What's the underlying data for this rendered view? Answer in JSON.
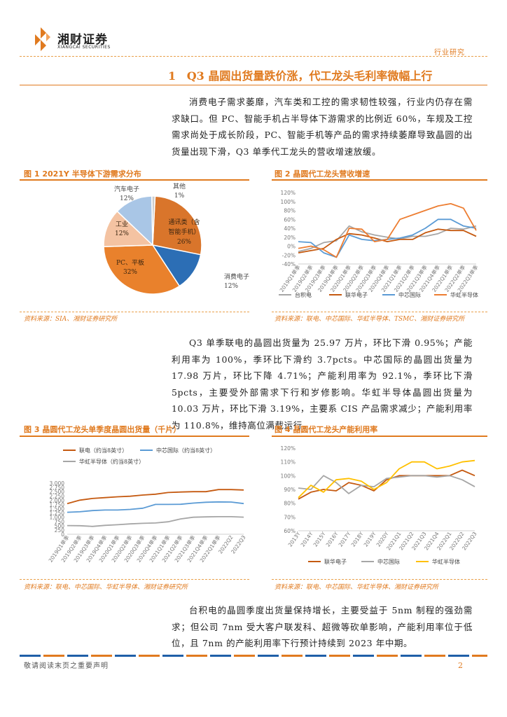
{
  "header": {
    "brand_cn": "湘财证券",
    "brand_en": "XIANGCAI SECURITIES",
    "category": "行业研究"
  },
  "section": {
    "number": "1",
    "title": "Q3 晶圆出货量跌价涨，代工龙头毛利率微幅上行"
  },
  "paragraphs": {
    "p1": "消费电子需求萎靡，汽车类和工控的需求韧性较强，行业内仍存在需求缺口。但 PC、智能手机占半导体下游需求的比例近 60%，车规及工控需求尚处于成长阶段，PC、智能手机等产品的需求持续萎靡导致晶圆的出货量出现下滑，Q3 单季代工龙头的营收增速放缓。",
    "p2": "Q3 单季联电的晶圆出货量为 25.97 万片，环比下滑 0.95%；产能利用率为 100%，季环比下滑约 3.7pcts。中芯国际的晶圆出货量为 17.98 万片，环比下降 4.71%；产能利用率为 92.1%，季环比下滑 5pcts，主要受外部需求下行和岁修影响。华虹半导体晶圆出货量为 10.03 万片，环比下滑 3.19%，主要系 CIS 产品需求减少；产能利用率为 110.8%，维持高位满载运行。",
    "p3": "台积电的晶圆季度出货量保持增长，主要受益于 5nm 制程的强劲需求；但公司 7nm 受大客户联发科、超微等砍单影响，产能利用率位于低位，且 7nm 的产能利用率下行预计持续到 2023 年中期。"
  },
  "figures": {
    "fig1": {
      "title": "图 1 2021Y 半导体下游需求分布",
      "source": "资料来源：SIA、湘财证券研究所"
    },
    "fig2": {
      "title": "图 2 晶圆代工龙头营收增速",
      "source": "资料来源：联电、中芯国际、华虹半导体、TSMC、湘财证券研究所"
    },
    "fig3": {
      "title": "图 3 晶圆代工龙头单季度晶圆出货量（千片）",
      "source": "资料来源：联电、中芯国际、华虹半导体、湘财证券研究所"
    },
    "fig4": {
      "title": "图 4 晶圆代工龙头产能利用率",
      "source": "资料来源：联电、中芯国际、华虹半导体、湘财证券研究所"
    }
  },
  "chart_data": [
    {
      "type": "pie",
      "slices": [
        {
          "label": "通讯类（含智能手机）",
          "line1": "通讯类（含",
          "line2": "智能手机）",
          "value": 26,
          "value_label": "26%",
          "color": "#d9752b"
        },
        {
          "label": "消费电子",
          "value": 12,
          "value_label": "12%",
          "color": "#2c6eb5"
        },
        {
          "label": "PC、平板",
          "value": 32,
          "value_label": "32%",
          "color": "#e9812c"
        },
        {
          "label": "工业",
          "value": 12,
          "value_label": "12%",
          "color": "#f4c3a2"
        },
        {
          "label": "汽车电子",
          "value": 12,
          "value_label": "12%",
          "color": "#a9c6e6"
        },
        {
          "label": "其他",
          "value": 1,
          "value_label": "1%",
          "color": "#cccccc"
        }
      ]
    },
    {
      "type": "line",
      "ylim": [
        -40,
        120
      ],
      "yticks": [
        "-40%",
        "-20%",
        "0%",
        "20%",
        "40%",
        "60%",
        "80%",
        "100%",
        "120%"
      ],
      "categories": [
        "2019Q1单季",
        "2019Q2单季",
        "2019Q3单季",
        "2019Q4单季",
        "2020Q1单季",
        "2020Q2单季",
        "2020Q3单季",
        "2020Q4单季",
        "2021Q1单季",
        "2021Q2单季",
        "2021Q3单季",
        "2021Q4单季",
        "2022Q1单季",
        "2022Q2单季",
        "2022Q3单季"
      ],
      "series": [
        {
          "name": "台积电",
          "color": "#a6a6a6",
          "values": [
            -12,
            -5,
            8,
            12,
            45,
            32,
            25,
            20,
            16,
            22,
            22,
            28,
            40,
            38,
            45
          ]
        },
        {
          "name": "联华电子",
          "color": "#c55a11",
          "values": [
            -15,
            -10,
            -5,
            15,
            28,
            25,
            18,
            10,
            15,
            15,
            30,
            38,
            35,
            35,
            22
          ]
        },
        {
          "name": "中芯国际",
          "color": "#5b9bd5",
          "values": [
            10,
            8,
            -15,
            -25,
            25,
            15,
            12,
            15,
            18,
            25,
            40,
            60,
            60,
            45,
            40
          ]
        },
        {
          "name": "华虹半导体",
          "color": "#ed7d31",
          "values": [
            -5,
            0,
            -8,
            -25,
            40,
            38,
            10,
            15,
            60,
            70,
            80,
            90,
            95,
            85,
            35
          ]
        }
      ]
    },
    {
      "type": "line",
      "ylim": [
        0,
        3000
      ],
      "yticks": [
        "0",
        "250",
        "500",
        "750",
        "1,000",
        "1,250",
        "1,500",
        "1,750",
        "2,000",
        "2,250",
        "2,500",
        "2,750",
        "3,000"
      ],
      "categories": [
        "2019Q1单季",
        "2019Q2单季",
        "2019Q3单季",
        "2019Q4单季",
        "2020Q1单季",
        "2020Q2单季",
        "2020Q3单季",
        "2020Q4单季",
        "2021Q1单季",
        "2021Q2单季",
        "2021Q3单季",
        "2021Q4单季",
        "2022Q1单季",
        "2022Q2",
        "2022Q3"
      ],
      "series": [
        {
          "name": "联电（约当8英寸）",
          "color": "#c55a11",
          "values": [
            1800,
            2000,
            2100,
            2150,
            2200,
            2230,
            2300,
            2350,
            2450,
            2480,
            2500,
            2500,
            2620,
            2620,
            2597
          ]
        },
        {
          "name": "中芯国际（约当8英寸）",
          "color": "#5b9bd5",
          "values": [
            1290,
            1320,
            1390,
            1420,
            1420,
            1460,
            1530,
            1750,
            1750,
            1760,
            1830,
            1880,
            1900,
            1890,
            1798
          ]
        },
        {
          "name": "华虹半导体（约当8英寸）",
          "color": "#a6a6a6",
          "values": [
            510,
            500,
            460,
            520,
            560,
            610,
            640,
            660,
            730,
            900,
            1000,
            1020,
            1030,
            1030,
            1003
          ]
        }
      ]
    },
    {
      "type": "line",
      "ylim": [
        60,
        120
      ],
      "yticks": [
        "60%",
        "70%",
        "80%",
        "90%",
        "100%",
        "110%",
        "120%"
      ],
      "categories": [
        "2013Y",
        "2014Y",
        "2015Y",
        "2016Y",
        "2017Y",
        "2018Y",
        "2019Y",
        "2020Y",
        "2021Q1",
        "2021Q2",
        "2021Q3",
        "2021Q4",
        "2022Q1",
        "2022Q2",
        "2022Q3"
      ],
      "series": [
        {
          "name": "联华电子",
          "color": "#c55a11",
          "values": [
            83,
            88,
            90,
            89,
            95,
            93,
            89,
            97,
            100,
            100,
            100,
            100,
            100,
            104,
            100
          ]
        },
        {
          "name": "中芯国际",
          "color": "#a6a6a6",
          "values": [
            91,
            90,
            100,
            95,
            87,
            93,
            92,
            98,
            99,
            100,
            100,
            99,
            100,
            97,
            92
          ]
        },
        {
          "name": "华虹半导体",
          "color": "#ffc000",
          "values": [
            84,
            93,
            88,
            97,
            98,
            96,
            90,
            95,
            105,
            110,
            110,
            105,
            107,
            110,
            111
          ]
        }
      ]
    }
  ],
  "footer": {
    "disclaimer": "敬请阅读末页之重要声明",
    "page": "2"
  }
}
